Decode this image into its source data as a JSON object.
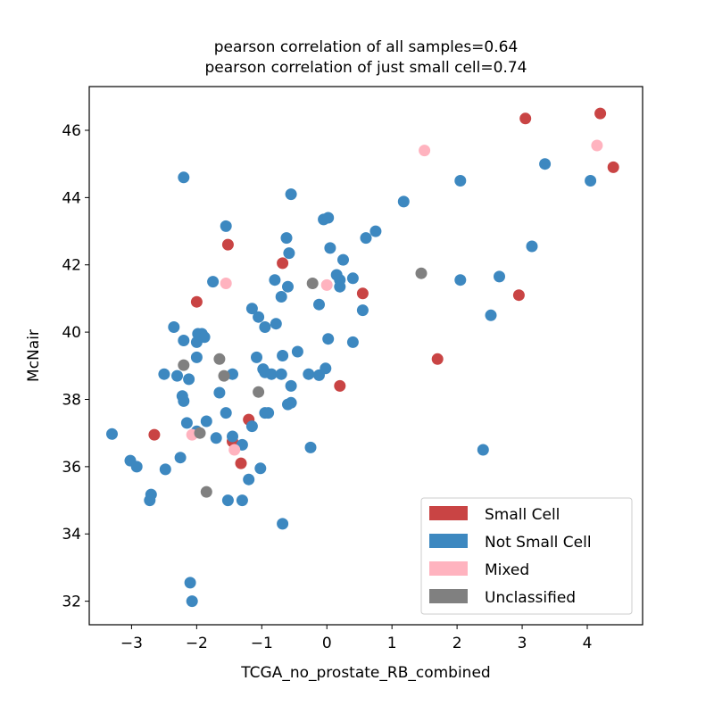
{
  "chart_data": {
    "type": "scatter",
    "title_lines": [
      "pearson correlation of all samples=0.64",
      "pearson correlation of just small cell=0.74"
    ],
    "xlabel": "TCGA_no_prostate_RB_combined",
    "ylabel": "McNair",
    "xlim": [
      -3.65,
      4.85
    ],
    "ylim": [
      31.3,
      47.3
    ],
    "xticks": [
      -3,
      -2,
      -1,
      0,
      1,
      2,
      3,
      4
    ],
    "yticks": [
      32,
      34,
      36,
      38,
      40,
      42,
      44,
      46
    ],
    "xtick_labels": [
      "−3",
      "−2",
      "−1",
      "0",
      "1",
      "2",
      "3",
      "4"
    ],
    "ytick_labels": [
      "32",
      "34",
      "36",
      "38",
      "40",
      "42",
      "44",
      "46"
    ],
    "grid": false,
    "legend_position": "lower-right",
    "series": [
      {
        "name": "Small Cell",
        "color": "#c94444",
        "points": [
          [
            4.2,
            46.5
          ],
          [
            3.05,
            46.35
          ],
          [
            4.4,
            44.9
          ],
          [
            -1.52,
            42.6
          ],
          [
            -0.68,
            42.05
          ],
          [
            -2.0,
            40.9
          ],
          [
            0.55,
            41.15
          ],
          [
            2.95,
            41.1
          ],
          [
            1.7,
            39.2
          ],
          [
            0.2,
            38.4
          ],
          [
            -2.65,
            36.95
          ],
          [
            -1.2,
            37.4
          ],
          [
            -1.45,
            36.75
          ],
          [
            -1.32,
            36.1
          ]
        ]
      },
      {
        "name": "Not Small Cell",
        "color": "#3d88c0",
        "points": [
          [
            -2.2,
            44.6
          ],
          [
            -0.55,
            44.1
          ],
          [
            -1.55,
            43.15
          ],
          [
            -0.62,
            42.8
          ],
          [
            -0.58,
            42.35
          ],
          [
            -0.05,
            43.35
          ],
          [
            0.02,
            43.4
          ],
          [
            0.6,
            42.8
          ],
          [
            0.75,
            43.0
          ],
          [
            1.18,
            43.88
          ],
          [
            2.05,
            44.5
          ],
          [
            3.35,
            45.0
          ],
          [
            4.05,
            44.5
          ],
          [
            3.15,
            42.55
          ],
          [
            2.05,
            41.55
          ],
          [
            2.65,
            41.65
          ],
          [
            2.52,
            40.5
          ],
          [
            2.4,
            36.5
          ],
          [
            0.05,
            42.5
          ],
          [
            0.25,
            42.15
          ],
          [
            -0.8,
            41.55
          ],
          [
            -0.6,
            41.35
          ],
          [
            -0.7,
            41.05
          ],
          [
            0.15,
            41.7
          ],
          [
            0.2,
            41.55
          ],
          [
            0.4,
            41.6
          ],
          [
            0.2,
            41.35
          ],
          [
            -0.12,
            40.82
          ],
          [
            -1.75,
            41.5
          ],
          [
            -1.15,
            40.7
          ],
          [
            -1.05,
            40.45
          ],
          [
            -0.95,
            40.15
          ],
          [
            -0.78,
            40.25
          ],
          [
            0.55,
            40.65
          ],
          [
            0.02,
            39.8
          ],
          [
            0.4,
            39.7
          ],
          [
            -2.35,
            40.15
          ],
          [
            -2.2,
            39.75
          ],
          [
            -1.98,
            39.95
          ],
          [
            -1.92,
            39.95
          ],
          [
            -1.88,
            39.85
          ],
          [
            -2.0,
            39.7
          ],
          [
            -2.0,
            39.25
          ],
          [
            -1.08,
            39.25
          ],
          [
            -0.68,
            39.3
          ],
          [
            -0.45,
            39.42
          ],
          [
            -2.5,
            38.75
          ],
          [
            -2.3,
            38.7
          ],
          [
            -2.12,
            38.6
          ],
          [
            -1.45,
            38.75
          ],
          [
            -0.98,
            38.9
          ],
          [
            -0.95,
            38.8
          ],
          [
            -0.85,
            38.75
          ],
          [
            -0.7,
            38.75
          ],
          [
            -0.28,
            38.75
          ],
          [
            -0.12,
            38.72
          ],
          [
            -0.02,
            38.92
          ],
          [
            -0.55,
            38.4
          ],
          [
            -1.65,
            38.2
          ],
          [
            -2.22,
            38.1
          ],
          [
            -2.2,
            37.95
          ],
          [
            -0.6,
            37.85
          ],
          [
            -0.55,
            37.9
          ],
          [
            -0.95,
            37.6
          ],
          [
            -0.9,
            37.6
          ],
          [
            -1.55,
            37.6
          ],
          [
            -2.15,
            37.3
          ],
          [
            -1.85,
            37.35
          ],
          [
            -1.15,
            37.2
          ],
          [
            -2.0,
            37.05
          ],
          [
            -1.7,
            36.85
          ],
          [
            -1.45,
            36.9
          ],
          [
            -1.3,
            36.65
          ],
          [
            -3.3,
            36.97
          ],
          [
            -3.02,
            36.18
          ],
          [
            -2.92,
            36.0
          ],
          [
            -2.48,
            35.92
          ],
          [
            -2.25,
            36.27
          ],
          [
            -1.02,
            35.95
          ],
          [
            -0.25,
            36.57
          ],
          [
            -1.2,
            35.62
          ],
          [
            -2.7,
            35.17
          ],
          [
            -2.72,
            35.0
          ],
          [
            -1.52,
            35.0
          ],
          [
            -1.3,
            35.0
          ],
          [
            -0.68,
            34.3
          ],
          [
            -2.1,
            32.55
          ],
          [
            -2.07,
            32.0
          ]
        ]
      },
      {
        "name": "Mixed",
        "color": "#ffb3bf",
        "points": [
          [
            1.5,
            45.4
          ],
          [
            4.15,
            45.55
          ],
          [
            -1.55,
            41.45
          ],
          [
            0.0,
            41.4
          ],
          [
            -2.07,
            36.95
          ],
          [
            -1.42,
            36.5
          ]
        ]
      },
      {
        "name": "Unclassified",
        "color": "#808080",
        "points": [
          [
            1.45,
            41.75
          ],
          [
            -0.22,
            41.45
          ],
          [
            -1.65,
            39.2
          ],
          [
            -2.2,
            39.02
          ],
          [
            -1.58,
            38.7
          ],
          [
            -1.05,
            38.22
          ],
          [
            -1.95,
            37.0
          ],
          [
            -1.85,
            35.25
          ]
        ]
      }
    ]
  }
}
